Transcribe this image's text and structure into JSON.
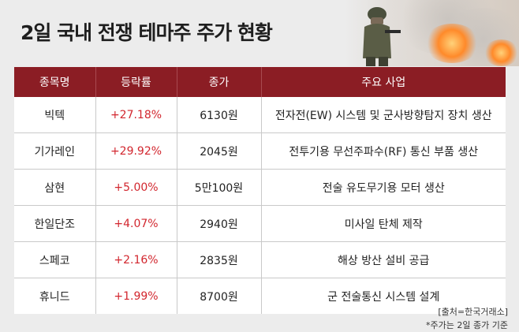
{
  "title": "2일 국내 전쟁 테마주 주가 현황",
  "table": {
    "headers": [
      "종목명",
      "등락률",
      "종가",
      "주요 사업"
    ],
    "rows": [
      {
        "name": "빅텍",
        "rate": "+27.18%",
        "close": "6130원",
        "business": "전자전(EW) 시스템 및 군사방향탐지 장치 생산"
      },
      {
        "name": "기가레인",
        "rate": "+29.92%",
        "close": "2045원",
        "business": "전투기용 무선주파수(RF) 통신 부품 생산"
      },
      {
        "name": "삼현",
        "rate": "+5.00%",
        "close": "5만100원",
        "business": "전술 유도무기용 모터 생산"
      },
      {
        "name": "한일단조",
        "rate": "+4.07%",
        "close": "2940원",
        "business": "미사일 탄체 제작"
      },
      {
        "name": "스페코",
        "rate": "+2.16%",
        "close": "2835원",
        "business": "해상 방산 설비 공급"
      },
      {
        "name": "휴니드",
        "rate": "+1.99%",
        "close": "8700원",
        "business": "군 전술통신 시스템 설계"
      }
    ]
  },
  "source": "[출처=한국거래소]",
  "note": "*주가는 2일 종가 기준",
  "colors": {
    "header_bg": "#8b1d24",
    "rate_text": "#d2262e",
    "page_bg": "#ececec"
  }
}
